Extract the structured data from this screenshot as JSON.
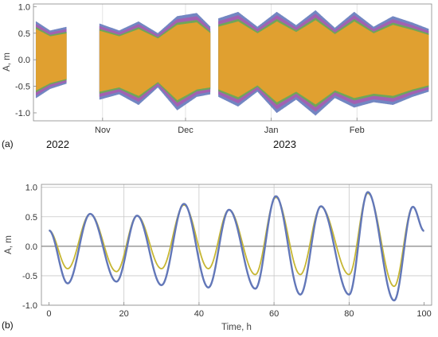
{
  "chart_data": [
    {
      "id": "a",
      "type": "line",
      "panel_label": "(a)",
      "ylabel": "A, m",
      "ylim": [
        -1.15,
        1.05
      ],
      "yticks": [
        -1.0,
        -0.5,
        0.0,
        0.5,
        1.0
      ],
      "ytick_labels": [
        "-1.0",
        "-0.5",
        "0.0",
        "0.5",
        "1.0"
      ],
      "x_start": "2022-10-07",
      "x_end": "2023-02-28",
      "month_ticks": [
        {
          "date": "2022-11-01",
          "label": "Nov"
        },
        {
          "date": "2022-12-01",
          "label": "Dec"
        },
        {
          "date": "2023-01-01",
          "label": "Jan"
        },
        {
          "date": "2023-02-01",
          "label": "Feb"
        }
      ],
      "year_labels": [
        {
          "date": "2022-10-07",
          "label": "2022"
        },
        {
          "date": "2023-01-01",
          "label": "2023"
        }
      ],
      "data_segments": [
        {
          "from": "2022-10-08",
          "to": "2022-10-19"
        },
        {
          "from": "2022-10-31",
          "to": "2022-12-10"
        },
        {
          "from": "2022-12-13",
          "to": "2023-02-27"
        }
      ],
      "envelope": {
        "dates": [
          "2022-10-08",
          "2022-10-13",
          "2022-10-19",
          "2022-10-31",
          "2022-11-07",
          "2022-11-14",
          "2022-11-21",
          "2022-11-28",
          "2022-12-05",
          "2022-12-10",
          "2022-12-13",
          "2022-12-20",
          "2022-12-27",
          "2023-01-03",
          "2023-01-10",
          "2023-01-17",
          "2023-01-24",
          "2023-01-31",
          "2023-02-07",
          "2023-02-14",
          "2023-02-21",
          "2023-02-27"
        ],
        "upper": [
          0.72,
          0.55,
          0.62,
          0.68,
          0.55,
          0.72,
          0.5,
          0.82,
          0.88,
          0.62,
          0.78,
          0.9,
          0.62,
          0.9,
          0.65,
          0.93,
          0.6,
          0.9,
          0.62,
          0.82,
          0.7,
          0.58
        ],
        "lower": [
          -0.72,
          -0.55,
          -0.45,
          -0.75,
          -0.65,
          -0.85,
          -0.52,
          -0.95,
          -0.7,
          -0.65,
          -0.7,
          -0.88,
          -0.6,
          -1.0,
          -0.75,
          -1.05,
          -0.72,
          -0.9,
          -0.8,
          -0.85,
          -0.7,
          -0.6
        ]
      },
      "series": [
        {
          "name": "",
          "color": "#6a7fbf"
        },
        {
          "name": "",
          "color": "#a45fb0"
        },
        {
          "name": "",
          "color": "#6daa55"
        },
        {
          "name": "",
          "color": "#e0a030"
        }
      ]
    },
    {
      "id": "b",
      "type": "line",
      "panel_label": "(b)",
      "xlabel": "Time, h",
      "ylabel": "A, m",
      "xlim": [
        -2,
        102
      ],
      "ylim": [
        -1.0,
        1.05
      ],
      "xticks": [
        0,
        20,
        40,
        60,
        80,
        100
      ],
      "yticks": [
        -1.0,
        -0.5,
        0.0,
        0.5,
        1.0
      ],
      "ytick_labels": [
        "-1.0",
        "-0.5",
        "0.0",
        "0.5",
        "1.0"
      ],
      "grid": true,
      "series": [
        {
          "name": "",
          "color": "#6277b8",
          "x": [
            0,
            5,
            11,
            18,
            23.5,
            30,
            36,
            42.5,
            48,
            55,
            60.5,
            67,
            72.5,
            80,
            85,
            92,
            97,
            100
          ],
          "y": [
            0.27,
            -0.63,
            0.55,
            -0.6,
            0.52,
            -0.66,
            0.72,
            -0.7,
            0.62,
            -0.72,
            0.85,
            -0.82,
            0.68,
            -0.82,
            0.92,
            -0.92,
            0.67,
            0.26
          ]
        },
        {
          "name": "",
          "color": "#c6b633",
          "x": [
            0,
            5,
            11,
            18,
            23.5,
            30,
            36,
            42.5,
            48,
            55,
            60.5,
            67,
            72.5,
            80,
            85,
            92,
            97,
            100
          ],
          "y": [
            0.27,
            -0.38,
            0.55,
            -0.43,
            0.52,
            -0.38,
            0.7,
            -0.38,
            0.62,
            -0.48,
            0.83,
            -0.48,
            0.67,
            -0.48,
            0.9,
            -0.68,
            0.67,
            0.26
          ]
        }
      ]
    }
  ]
}
